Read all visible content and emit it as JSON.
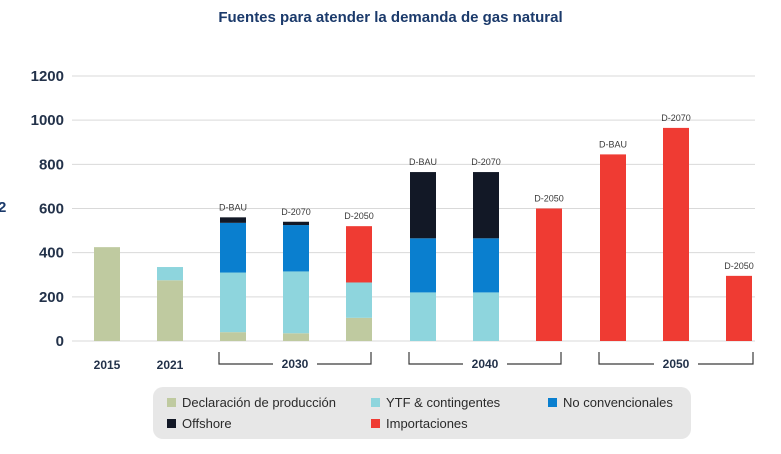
{
  "chart_data": {
    "type": "bar",
    "title": "Fuentes para atender la demanda de gas natural",
    "ylim": [
      0,
      1200
    ],
    "yticks": [
      0,
      200,
      400,
      600,
      800,
      1000,
      1200
    ],
    "grid": true,
    "legend_placement": "bottom",
    "series": [
      {
        "name": "Declaración de producción",
        "color": "#bfcaa0"
      },
      {
        "name": "YTF & contingentes",
        "color": "#8ed5dd"
      },
      {
        "name": "No convencionales",
        "color": "#0a7fcf"
      },
      {
        "name": "Offshore",
        "color": "#121826"
      },
      {
        "name": "Importaciones",
        "color": "#ef3b33"
      }
    ],
    "bars": [
      {
        "group": "2015",
        "label": "",
        "values": [
          425,
          0,
          0,
          0,
          0
        ]
      },
      {
        "group": "2021",
        "label": "",
        "values": [
          275,
          60,
          0,
          0,
          0
        ]
      },
      {
        "group": "2030",
        "label": "D-BAU",
        "values": [
          40,
          270,
          225,
          25,
          0
        ]
      },
      {
        "group": "2030",
        "label": "D-2070",
        "values": [
          35,
          280,
          210,
          15,
          0
        ]
      },
      {
        "group": "2030",
        "label": "D-2050",
        "values": [
          105,
          160,
          0,
          0,
          255
        ]
      },
      {
        "group": "2040",
        "label": "D-BAU",
        "values": [
          0,
          220,
          245,
          300,
          0
        ]
      },
      {
        "group": "2040",
        "label": "D-2070",
        "values": [
          0,
          220,
          245,
          300,
          0
        ]
      },
      {
        "group": "2040",
        "label": "D-2050",
        "values": [
          0,
          0,
          0,
          0,
          600
        ]
      },
      {
        "group": "2050",
        "label": "D-BAU",
        "values": [
          0,
          0,
          0,
          0,
          845
        ]
      },
      {
        "group": "2050",
        "label": "D-2070",
        "values": [
          0,
          0,
          0,
          0,
          965
        ]
      },
      {
        "group": "2050",
        "label": "D-2050",
        "values": [
          0,
          0,
          0,
          0,
          295
        ]
      }
    ],
    "groups": [
      "2015",
      "2021",
      "2030",
      "2040",
      "2050"
    ],
    "y_axis_partial_label": "2"
  }
}
